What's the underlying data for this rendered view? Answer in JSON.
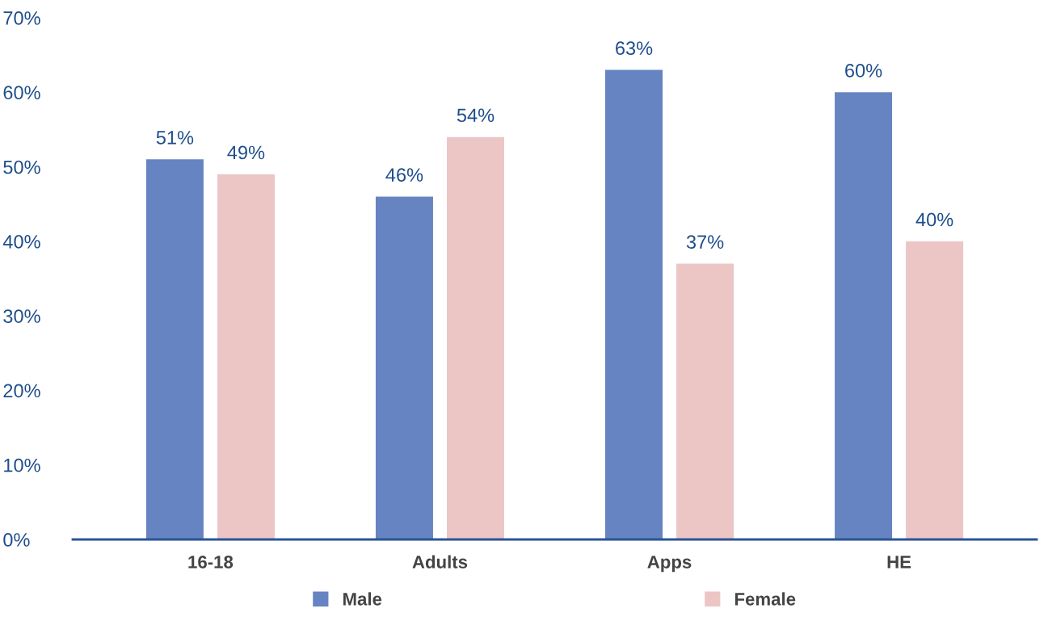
{
  "chart_data": {
    "type": "bar",
    "categories": [
      "16-18",
      "Adults",
      "Apps",
      "HE"
    ],
    "series": [
      {
        "name": "Male",
        "color": "#6683c2",
        "values": [
          51,
          46,
          63,
          60
        ]
      },
      {
        "name": "Female",
        "color": "#ecc5c5",
        "values": [
          49,
          54,
          37,
          40
        ]
      }
    ],
    "ylim": [
      0,
      70
    ],
    "yticks": [
      {
        "value": 0,
        "label": "0%"
      },
      {
        "value": 10,
        "label": "10%"
      },
      {
        "value": 20,
        "label": "20%"
      },
      {
        "value": 30,
        "label": "30%"
      },
      {
        "value": 40,
        "label": "40%"
      },
      {
        "value": 50,
        "label": "50%"
      },
      {
        "value": 60,
        "label": "60%"
      },
      {
        "value": 70,
        "label": "70%"
      }
    ],
    "value_labels": [
      [
        "51%",
        "46%",
        "63%",
        "60%"
      ],
      [
        "49%",
        "54%",
        "37%",
        "40%"
      ]
    ],
    "grid": false,
    "legend": "bottom"
  }
}
